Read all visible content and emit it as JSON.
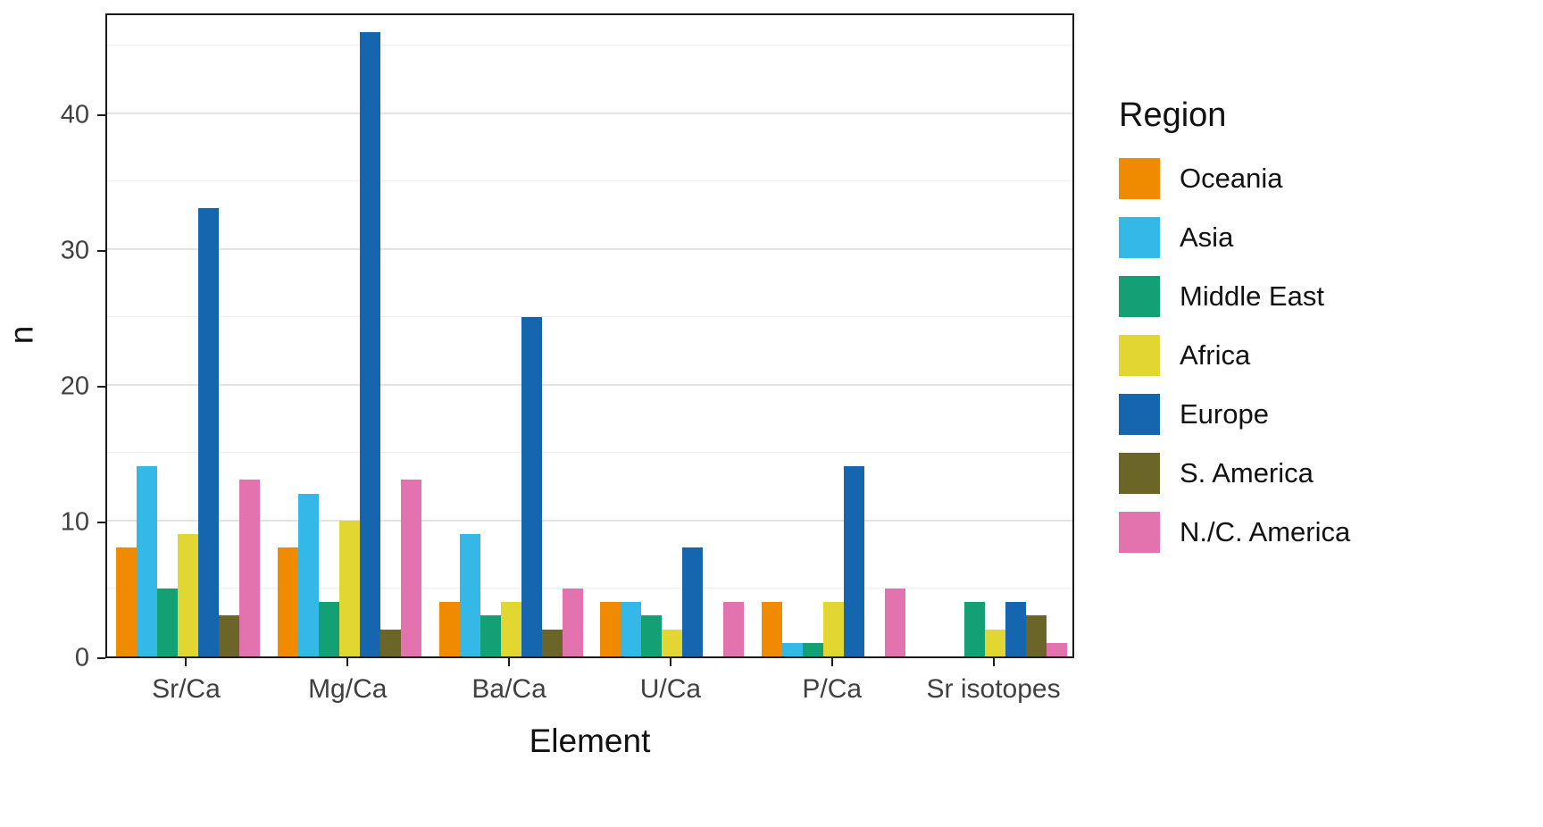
{
  "figure": {
    "xlabel": "Element",
    "ylabel": "n",
    "legend_title": "Region"
  },
  "chart_data": {
    "type": "bar",
    "title": "",
    "xlabel": "Element",
    "ylabel": "n",
    "categories": [
      "Sr/Ca",
      "Mg/Ca",
      "Ba/Ca",
      "U/Ca",
      "P/Ca",
      "Sr isotopes"
    ],
    "series": [
      {
        "name": "Oceania",
        "color": "#F08A00",
        "values": [
          8,
          8,
          4,
          4,
          4,
          0
        ]
      },
      {
        "name": "Asia",
        "color": "#33B8E8",
        "values": [
          14,
          12,
          9,
          4,
          1,
          0
        ]
      },
      {
        "name": "Middle East",
        "color": "#13A075",
        "values": [
          5,
          4,
          3,
          3,
          1,
          4
        ]
      },
      {
        "name": "Africa",
        "color": "#E2D632",
        "values": [
          9,
          10,
          4,
          2,
          4,
          2
        ]
      },
      {
        "name": "Europe",
        "color": "#1566AE",
        "values": [
          33,
          46,
          25,
          8,
          14,
          4
        ]
      },
      {
        "name": "S. America",
        "color": "#6C6528",
        "values": [
          3,
          2,
          2,
          0,
          0,
          3
        ]
      },
      {
        "name": "N./C. America",
        "color": "#E273AE",
        "values": [
          13,
          13,
          5,
          4,
          5,
          1
        ]
      }
    ],
    "ylim": [
      0,
      47.5
    ],
    "yticks": [
      0,
      10,
      20,
      30,
      40
    ],
    "grid": true,
    "legend_position": "right"
  }
}
